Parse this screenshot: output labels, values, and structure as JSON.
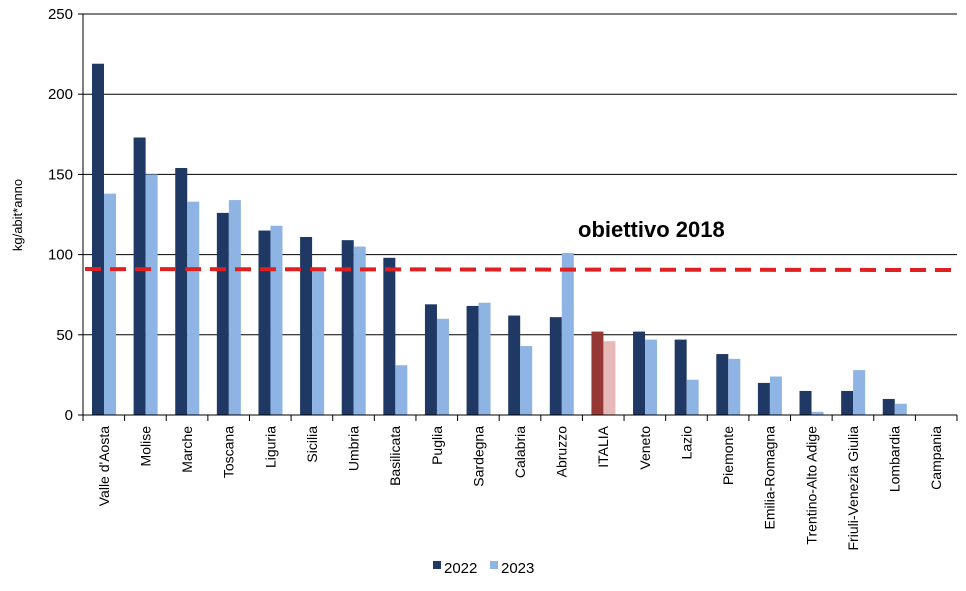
{
  "chart_data": {
    "type": "bar",
    "ylabel": "kg/abit*anno",
    "ylim": [
      0,
      250
    ],
    "yticks": [
      0,
      50,
      100,
      150,
      200,
      250
    ],
    "grid": true,
    "categories": [
      "Valle d'Aosta",
      "Molise",
      "Marche",
      "Toscana",
      "Liguria",
      "Sicilia",
      "Umbria",
      "Basilicata",
      "Puglia",
      "Sardegna",
      "Calabria",
      "Abruzzo",
      "ITALIA",
      "Veneto",
      "Lazio",
      "Piemonte",
      "Emilia-Romagna",
      "Trentino-Alto Adige",
      "Friuli-Venezia Giulia",
      "Lombardia",
      "Campania"
    ],
    "series": [
      {
        "name": "2022",
        "color": "#1f3864",
        "values": [
          219,
          173,
          154,
          126,
          115,
          111,
          109,
          98,
          69,
          68,
          62,
          61,
          52,
          52,
          47,
          38,
          20,
          15,
          15,
          10,
          0
        ]
      },
      {
        "name": "2023",
        "color": "#8eb4e3",
        "values": [
          138,
          150,
          133,
          134,
          118,
          92,
          105,
          31,
          60,
          70,
          43,
          101,
          46,
          47,
          22,
          35,
          24,
          2,
          28,
          7,
          0
        ]
      }
    ],
    "highlight": {
      "category": "ITALIA",
      "colors": [
        "#953735",
        "#e6b9b8"
      ]
    },
    "target": {
      "label": "obiettivo 2018",
      "value": 91,
      "color": "#e02020"
    },
    "legend_position": "bottom"
  }
}
